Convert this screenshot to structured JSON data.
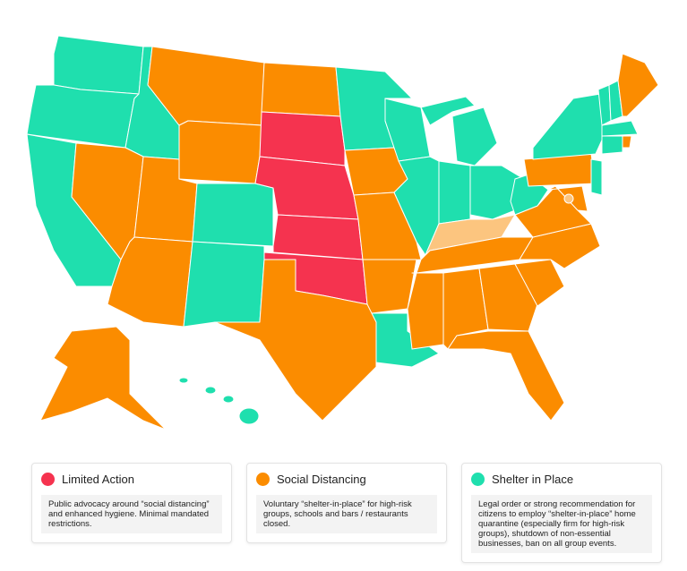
{
  "legend": [
    {
      "label": "Limited Action",
      "color": "#f5334f",
      "description": "Public advocacy around “social distancing” and enhanced hygiene. Minimal mandated restrictions."
    },
    {
      "label": "Social Distancing",
      "color": "#fb8c00",
      "description": "Voluntary “shelter-in-place” for high-risk groups, schools and bars / restaurants closed."
    },
    {
      "label": "Shelter in Place",
      "color": "#1fdfae",
      "description": "Legal order or strong recommendation for citizens to employ “shelter-in-place” home quarantine (especially firm for high-risk groups), shutdown of non-essential businesses, ban on all group events."
    }
  ]
}
